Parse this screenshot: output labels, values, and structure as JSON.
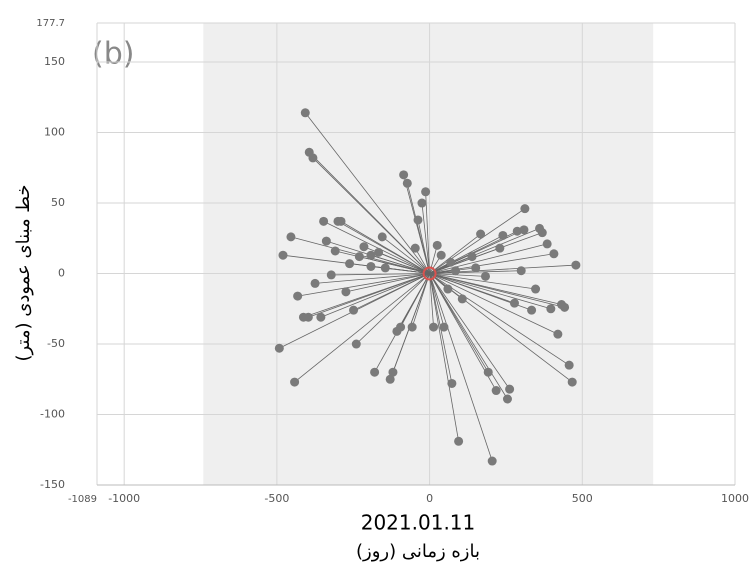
{
  "chart_data": {
    "type": "scatter",
    "panel_label": "(b)",
    "x_label": "2021.01.11",
    "x_sublabel": "بازه زمانی (روز)",
    "y_label": "خط مبنای عمودی (متر)",
    "xlim": [
      -1089,
      1000
    ],
    "ylim": [
      -150,
      177.7
    ],
    "xticks": [
      -1089,
      -1000,
      -500,
      0,
      500,
      1000
    ],
    "yticks": [
      -150,
      -100,
      -50,
      0,
      50,
      100,
      150,
      177.7
    ],
    "grid": true,
    "shaded_range": [
      -741,
      732
    ],
    "shade_color": "#efefef",
    "reference": {
      "x": 0,
      "y": 0,
      "color": "#d9534f"
    },
    "series": [
      {
        "color": "#7a7a7a",
        "x": [
          -407,
          -394,
          -382,
          -85,
          -73,
          -13,
          -25,
          -38,
          -347,
          -300,
          -290,
          -454,
          -338,
          -155,
          -215,
          -309,
          -230,
          -192,
          -167,
          -262,
          -480,
          -145,
          -192,
          -47,
          25,
          38,
          -322,
          -375,
          -274,
          -432,
          -413,
          -397,
          -356,
          -249,
          -492,
          -240,
          -442,
          -107,
          -95,
          -57,
          -180,
          -120,
          -129,
          13,
          47,
          73,
          95,
          205,
          192,
          218,
          255,
          262,
          107,
          60,
          183,
          151,
          139,
          167,
          230,
          240,
          287,
          309,
          312,
          360,
          369,
          385,
          407,
          479,
          300,
          347,
          278,
          334,
          397,
          432,
          442,
          420,
          457,
          467,
          69,
          85
        ],
        "values": [
          114,
          86,
          82,
          70,
          64,
          58,
          50,
          38,
          37,
          37,
          37,
          26,
          23,
          26,
          19,
          16,
          12,
          13,
          15,
          7,
          13,
          4,
          5,
          18,
          20,
          13,
          -1,
          -7,
          -13,
          -16,
          -31,
          -31,
          -31,
          -26,
          -53,
          -50,
          -77,
          -41,
          -38,
          -38,
          -70,
          -70,
          -75,
          -38,
          -38,
          -78,
          -119,
          -133,
          -70,
          -83,
          -89,
          -82,
          -18,
          -11,
          -2,
          4,
          12,
          28,
          18,
          27,
          30,
          31,
          46,
          32,
          29,
          21,
          14,
          6,
          2,
          -11,
          -21,
          -26,
          -25,
          -22,
          -24,
          -43,
          -65,
          -77,
          8,
          2
        ]
      }
    ]
  }
}
